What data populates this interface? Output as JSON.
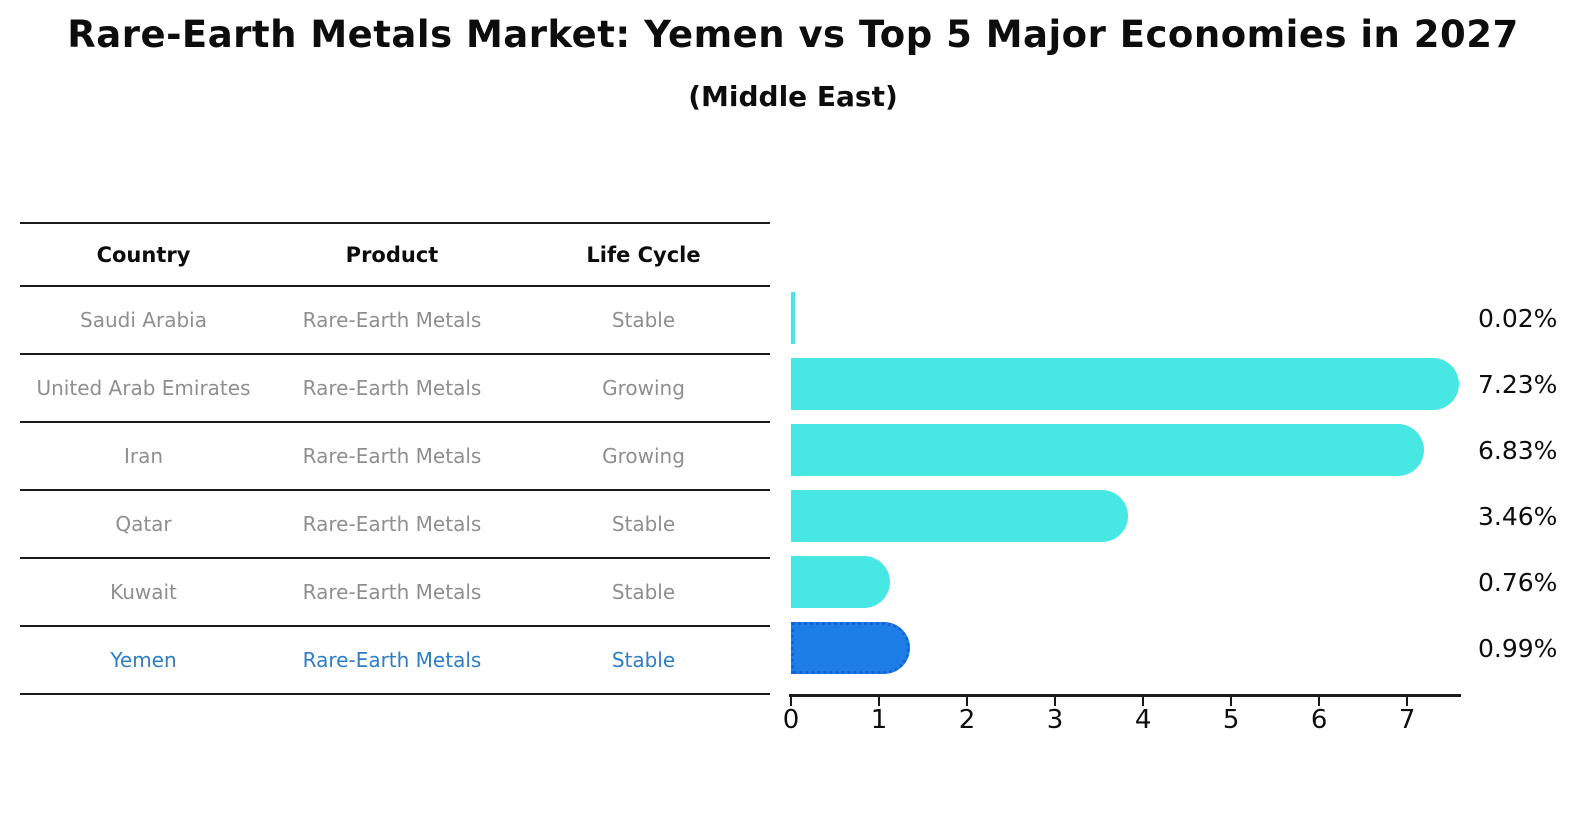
{
  "title": "Rare-Earth Metals Market: Yemen vs Top 5 Major Economies in 2027",
  "subtitle": "(Middle East)",
  "table": {
    "headers": [
      "Country",
      "Product",
      "Life Cycle"
    ],
    "rows": [
      {
        "country": "Saudi Arabia",
        "product": "Rare-Earth Metals",
        "life_cycle": "Stable",
        "highlighted": false
      },
      {
        "country": "United Arab Emirates",
        "product": "Rare-Earth Metals",
        "life_cycle": "Growing",
        "highlighted": false
      },
      {
        "country": "Iran",
        "product": "Rare-Earth Metals",
        "life_cycle": "Growing",
        "highlighted": false
      },
      {
        "country": "Qatar",
        "product": "Rare-Earth Metals",
        "life_cycle": "Stable",
        "highlighted": false
      },
      {
        "country": "Kuwait",
        "product": "Rare-Earth Metals",
        "life_cycle": "Stable",
        "highlighted": false
      },
      {
        "country": "Yemen",
        "product": "Rare-Earth Metals",
        "life_cycle": "Stable",
        "highlighted": true
      }
    ]
  },
  "chart_data": {
    "type": "bar",
    "orientation": "horizontal",
    "categories": [
      "Saudi Arabia",
      "United Arab Emirates",
      "Iran",
      "Qatar",
      "Kuwait",
      "Yemen"
    ],
    "values": [
      0.02,
      7.23,
      6.83,
      3.46,
      0.76,
      0.99
    ],
    "labels": [
      "0.02%",
      "7.23%",
      "6.83%",
      "3.46%",
      "0.76%",
      "0.99%"
    ],
    "title": "Rare-Earth Metals Market: Yemen vs Top 5 Major Economies in 2027 (Middle East)",
    "xlabel": "",
    "ylabel": "",
    "xlim": [
      0,
      7.6
    ],
    "xticks": [
      0,
      1,
      2,
      3,
      4,
      5,
      6,
      7
    ],
    "grid": false,
    "legend": false,
    "highlight_index": 5
  },
  "colors": {
    "bar": "#47e7e4",
    "highlight_bar": "#1e7ee8",
    "highlight_border": "#1463d6",
    "highlight_text": "#2d7ec7",
    "table_text": "#8f8f8f",
    "axis": "#1a1a1a",
    "text": "#0d0d0d",
    "background": "#ffffff"
  }
}
